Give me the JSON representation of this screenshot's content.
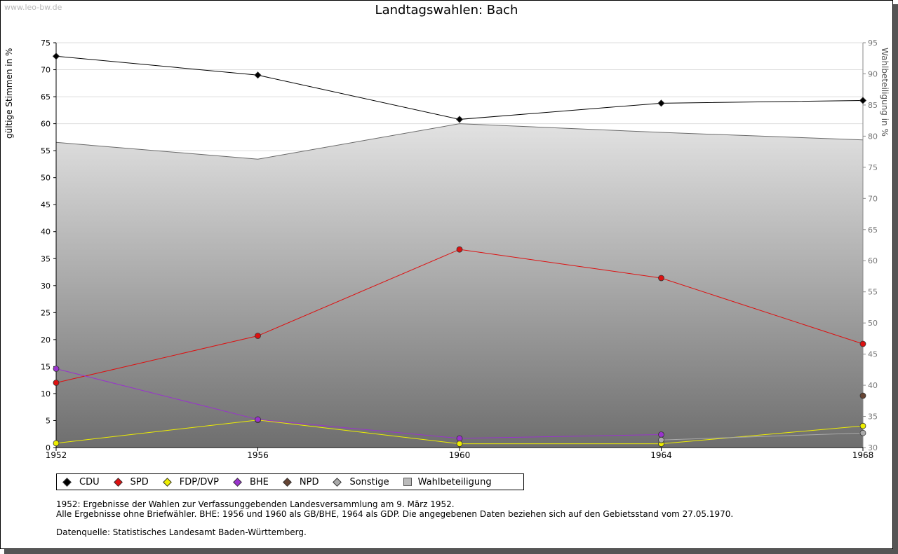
{
  "watermark": "www.leo-bw.de",
  "notes": {
    "line1": "1952: Ergebnisse der Wahlen zur Verfassunggebenden Landesversammlung am 9. März 1952.",
    "line2": "Alle Ergebnisse ohne Briefwähler. BHE: 1956 und 1960 als GB/BHE, 1964 als GDP. Die angegebenen Daten beziehen sich auf den Gebietsstand vom 27.05.1970.",
    "source": "Datenquelle: Statistisches Landesamt Baden-Württemberg."
  },
  "chart_data": {
    "type": "line",
    "title": "Landtagswahlen: Bach",
    "xlabel": "",
    "ylabel": "gültige Stimmen in %",
    "y2label": "Wahlbeteiligung in %",
    "categories": [
      "1952",
      "1956",
      "1960",
      "1964",
      "1968"
    ],
    "ylim": [
      0,
      75
    ],
    "y2lim": [
      30,
      95
    ],
    "yticks": [
      0,
      5,
      10,
      15,
      20,
      25,
      30,
      35,
      40,
      45,
      50,
      55,
      60,
      65,
      70,
      75
    ],
    "y2ticks": [
      30,
      35,
      40,
      45,
      50,
      55,
      60,
      65,
      70,
      75,
      80,
      85,
      90,
      95
    ],
    "grid": true,
    "legend_position": "bottom",
    "series": [
      {
        "name": "CDU",
        "color": "#000000",
        "values": [
          72.5,
          69.0,
          60.8,
          63.8,
          64.3
        ]
      },
      {
        "name": "SPD",
        "color": "#dd1111",
        "values": [
          12.0,
          20.7,
          36.7,
          31.4,
          19.2
        ]
      },
      {
        "name": "FDP/DVP",
        "color": "#eeee00",
        "values": [
          0.8,
          5.1,
          0.7,
          0.7,
          4.0
        ]
      },
      {
        "name": "BHE",
        "color": "#9933cc",
        "values": [
          14.6,
          5.2,
          1.7,
          2.4,
          null
        ]
      },
      {
        "name": "NPD",
        "color": "#664433",
        "values": [
          null,
          null,
          null,
          null,
          9.6
        ]
      },
      {
        "name": "Sonstige",
        "color": "#aaaaaa",
        "values": [
          null,
          null,
          null,
          1.4,
          2.7
        ]
      }
    ],
    "turnout": {
      "name": "Wahlbeteiligung",
      "color": "#666666",
      "values": [
        79.0,
        76.3,
        82.0,
        80.6,
        79.4
      ]
    }
  }
}
